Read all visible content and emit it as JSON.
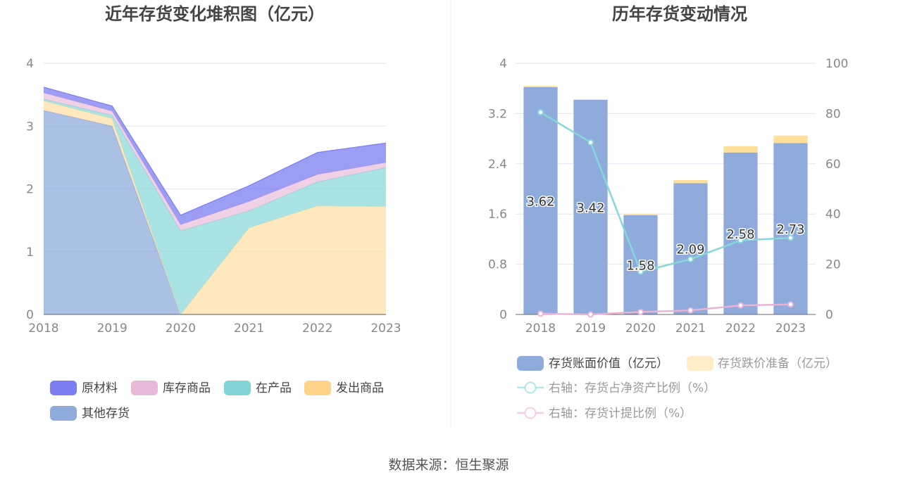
{
  "source_text": "数据来源：恒生聚源",
  "chart_data": [
    {
      "type": "area",
      "stacked": true,
      "title": "近年存货变化堆积图（亿元）",
      "categories": [
        "2018",
        "2019",
        "2020",
        "2021",
        "2022",
        "2023"
      ],
      "ylim": [
        0,
        4
      ],
      "yticks": [
        "0",
        "1",
        "2",
        "3",
        "4"
      ],
      "grid": true,
      "legend_position": "bottom",
      "series": [
        {
          "name": "其他存货",
          "color": "#8eabdc",
          "values": [
            3.25,
            3.0,
            0.0,
            0.0,
            0.0,
            0.0
          ]
        },
        {
          "name": "发出商品",
          "color": "#ffe0a8",
          "values": [
            0.15,
            0.12,
            0.0,
            1.38,
            1.73,
            1.72
          ]
        },
        {
          "name": "在产品",
          "color": "#8ed9d9",
          "values": [
            0.03,
            0.05,
            1.33,
            0.27,
            0.38,
            0.62
          ]
        },
        {
          "name": "库存商品",
          "color": "#ebc0dc",
          "values": [
            0.1,
            0.07,
            0.1,
            0.15,
            0.12,
            0.08
          ]
        },
        {
          "name": "原材料",
          "color": "#7b7ef0",
          "values": [
            0.09,
            0.08,
            0.15,
            0.25,
            0.35,
            0.31
          ]
        }
      ],
      "legend": [
        {
          "name": "原材料",
          "color": "#7b7ef0"
        },
        {
          "name": "库存商品",
          "color": "#e8b8d8"
        },
        {
          "name": "在产品",
          "color": "#82d4d4"
        },
        {
          "name": "发出商品",
          "color": "#ffd38a"
        },
        {
          "name": "其他存货",
          "color": "#8eabdc"
        }
      ]
    },
    {
      "type": "bar",
      "title": "历年存货变动情况",
      "categories": [
        "2018",
        "2019",
        "2020",
        "2021",
        "2022",
        "2023"
      ],
      "ylim": [
        0,
        4
      ],
      "yticks": [
        "0",
        "0.8",
        "1.6",
        "2.4",
        "3.2",
        "4"
      ],
      "y2lim": [
        0,
        100
      ],
      "y2ticks": [
        "0",
        "20",
        "40",
        "60",
        "80",
        "100"
      ],
      "grid": true,
      "legend_position": "bottom",
      "bar_series": [
        {
          "name": "存货账面价值（亿元）",
          "color": "#8eabdc",
          "values": [
            3.62,
            3.42,
            1.58,
            2.09,
            2.58,
            2.73
          ]
        },
        {
          "name": "存货跌价准备（亿元）",
          "color": "#ffdf9a",
          "values": [
            0.02,
            0.0,
            0.02,
            0.05,
            0.1,
            0.12
          ]
        }
      ],
      "data_labels": [
        "3.62",
        "3.42",
        "1.58",
        "2.09",
        "2.58",
        "2.73"
      ],
      "line_series": [
        {
          "name": "右轴：存货占净资产比例（%）",
          "color": "#86d7d9",
          "values": [
            80.5,
            68.5,
            17.0,
            22.0,
            29.5,
            30.5
          ]
        },
        {
          "name": "右轴：存货计提比例（%）",
          "color": "#eab3d6",
          "values": [
            0.3,
            0.0,
            1.0,
            1.6,
            3.6,
            4.0
          ]
        }
      ]
    }
  ]
}
